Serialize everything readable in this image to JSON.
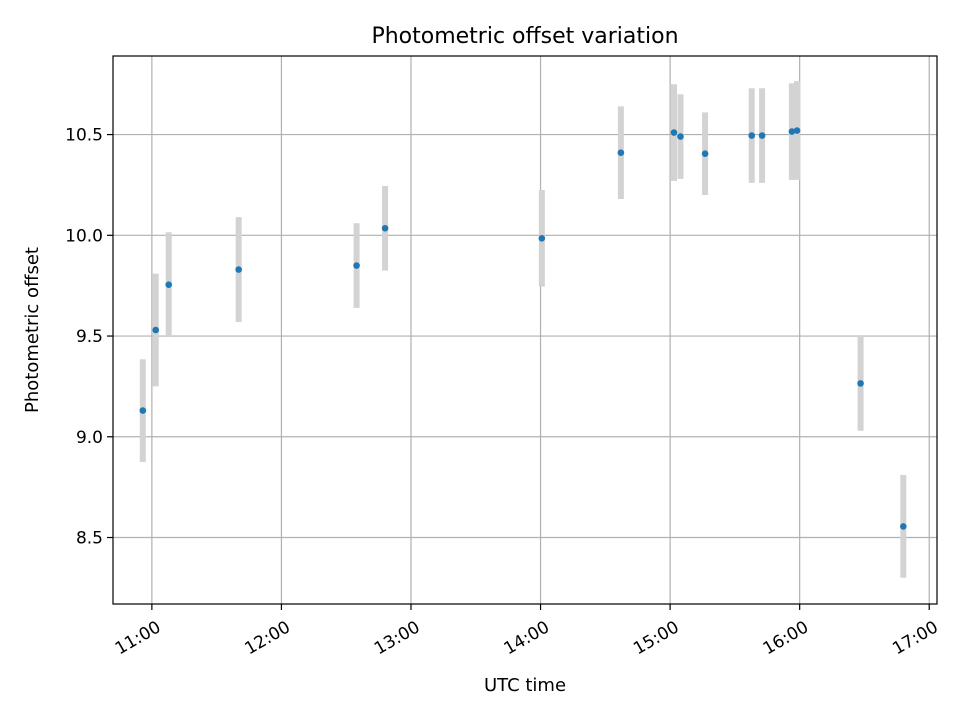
{
  "chart_data": {
    "type": "scatter",
    "title": "Photometric offset variation",
    "xlabel": "UTC time",
    "ylabel": "Photometric offset",
    "xlim": [
      10.7,
      17.06
    ],
    "ylim": [
      8.17,
      10.89
    ],
    "grid": true,
    "x_ticks": [
      {
        "value": 11,
        "label": "11:00"
      },
      {
        "value": 12,
        "label": "12:00"
      },
      {
        "value": 13,
        "label": "13:00"
      },
      {
        "value": 14,
        "label": "14:00"
      },
      {
        "value": 15,
        "label": "15:00"
      },
      {
        "value": 16,
        "label": "16:00"
      },
      {
        "value": 17,
        "label": "17:00"
      }
    ],
    "y_ticks": [
      {
        "value": 8.5,
        "label": "8.5"
      },
      {
        "value": 9.0,
        "label": "9.0"
      },
      {
        "value": 9.5,
        "label": "9.5"
      },
      {
        "value": 10.0,
        "label": "10.0"
      },
      {
        "value": 10.5,
        "label": "10.5"
      }
    ],
    "series": [
      {
        "name": "offset",
        "color": "#1f77b4",
        "errorbar_color": "#d3d3d3",
        "points": [
          {
            "x": 10.93,
            "y": 9.13,
            "err": 0.255
          },
          {
            "x": 11.03,
            "y": 9.53,
            "err": 0.28
          },
          {
            "x": 11.13,
            "y": 9.755,
            "err": 0.26
          },
          {
            "x": 11.67,
            "y": 9.83,
            "err": 0.26
          },
          {
            "x": 12.58,
            "y": 9.85,
            "err": 0.21
          },
          {
            "x": 12.8,
            "y": 10.035,
            "err": 0.21
          },
          {
            "x": 14.01,
            "y": 9.985,
            "err": 0.24
          },
          {
            "x": 14.62,
            "y": 10.41,
            "err": 0.23
          },
          {
            "x": 15.03,
            "y": 10.51,
            "err": 0.24
          },
          {
            "x": 15.08,
            "y": 10.49,
            "err": 0.21
          },
          {
            "x": 15.27,
            "y": 10.405,
            "err": 0.205
          },
          {
            "x": 15.63,
            "y": 10.495,
            "err": 0.235
          },
          {
            "x": 15.71,
            "y": 10.495,
            "err": 0.235
          },
          {
            "x": 15.94,
            "y": 10.515,
            "err": 0.24
          },
          {
            "x": 15.98,
            "y": 10.52,
            "err": 0.245
          },
          {
            "x": 16.47,
            "y": 9.265,
            "err": 0.235
          },
          {
            "x": 16.8,
            "y": 8.555,
            "err": 0.255
          }
        ]
      }
    ]
  }
}
